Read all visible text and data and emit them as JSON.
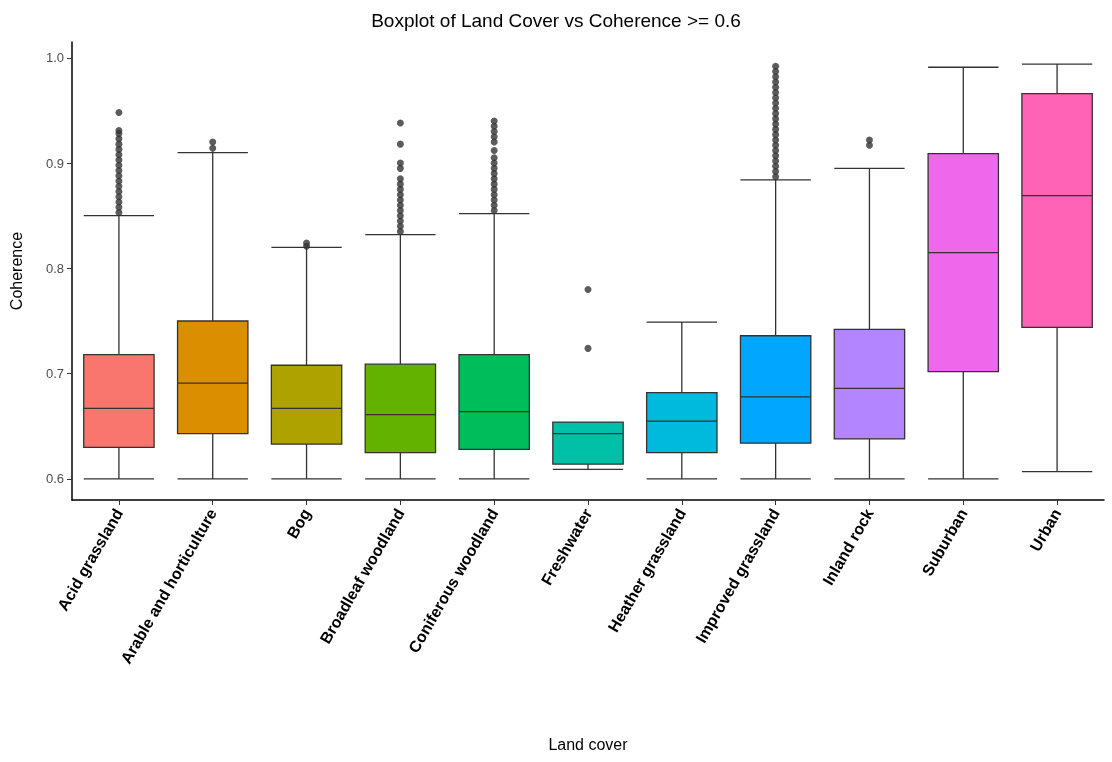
{
  "chart_data": {
    "type": "box",
    "title": "Boxplot of Land Cover vs Coherence >= 0.6",
    "xlabel": "Land cover",
    "ylabel": "Coherence",
    "categories": [
      "Acid grassland",
      "Arable and horticulture",
      "Bog",
      "Broadleaf woodland",
      "Coniferous woodland",
      "Freshwater",
      "Heather grassland",
      "Improved grassland",
      "Inland rock",
      "Suburban",
      "Urban"
    ],
    "colors": [
      "#f8766d",
      "#db8e00",
      "#aea200",
      "#64b200",
      "#00bd5c",
      "#00c1a7",
      "#00bade",
      "#00a6ff",
      "#b385ff",
      "#ef67eb",
      "#ff63b6"
    ],
    "boxes": [
      {
        "low": 0.6,
        "q1": 0.63,
        "median": 0.667,
        "q3": 0.718,
        "high": 0.85,
        "outliers": [
          0.853,
          0.858,
          0.863,
          0.868,
          0.873,
          0.878,
          0.883,
          0.888,
          0.893,
          0.898,
          0.903,
          0.908,
          0.913,
          0.918,
          0.923,
          0.928,
          0.931,
          0.948
        ]
      },
      {
        "low": 0.6,
        "q1": 0.643,
        "median": 0.691,
        "q3": 0.75,
        "high": 0.91,
        "outliers": [
          0.914,
          0.92
        ]
      },
      {
        "low": 0.6,
        "q1": 0.633,
        "median": 0.667,
        "q3": 0.708,
        "high": 0.82,
        "outliers": [
          0.821,
          0.824
        ]
      },
      {
        "low": 0.6,
        "q1": 0.625,
        "median": 0.661,
        "q3": 0.709,
        "high": 0.832,
        "outliers": [
          0.835,
          0.84,
          0.845,
          0.85,
          0.855,
          0.86,
          0.865,
          0.87,
          0.875,
          0.88,
          0.885,
          0.895,
          0.9,
          0.918,
          0.938
        ]
      },
      {
        "low": 0.6,
        "q1": 0.628,
        "median": 0.664,
        "q3": 0.718,
        "high": 0.852,
        "outliers": [
          0.855,
          0.86,
          0.865,
          0.87,
          0.875,
          0.88,
          0.885,
          0.89,
          0.895,
          0.9,
          0.905,
          0.912,
          0.92,
          0.925,
          0.93,
          0.935,
          0.94
        ]
      },
      {
        "low": 0.609,
        "q1": 0.614,
        "median": 0.643,
        "q3": 0.654,
        "high": 0.654,
        "outliers": [
          0.724,
          0.78
        ]
      },
      {
        "low": 0.6,
        "q1": 0.625,
        "median": 0.655,
        "q3": 0.682,
        "high": 0.749
      },
      {
        "low": 0.6,
        "q1": 0.634,
        "median": 0.678,
        "q3": 0.736,
        "high": 0.884,
        "outliers": [
          0.887,
          0.892,
          0.897,
          0.902,
          0.907,
          0.912,
          0.917,
          0.922,
          0.927,
          0.932,
          0.937,
          0.942,
          0.947,
          0.952,
          0.957,
          0.962,
          0.967,
          0.972,
          0.977,
          0.982,
          0.987,
          0.992
        ]
      },
      {
        "low": 0.6,
        "q1": 0.638,
        "median": 0.686,
        "q3": 0.742,
        "high": 0.895,
        "outliers": [
          0.917,
          0.922
        ]
      },
      {
        "low": 0.6,
        "q1": 0.702,
        "median": 0.815,
        "q3": 0.909,
        "high": 0.991
      },
      {
        "low": 0.607,
        "q1": 0.744,
        "median": 0.869,
        "q3": 0.966,
        "high": 0.994
      }
    ],
    "ylim": [
      0.58,
      1.015
    ],
    "yticks": [
      0.6,
      0.7,
      0.8,
      0.9,
      {
        "value": 1.0,
        "label": "1.0"
      }
    ]
  }
}
